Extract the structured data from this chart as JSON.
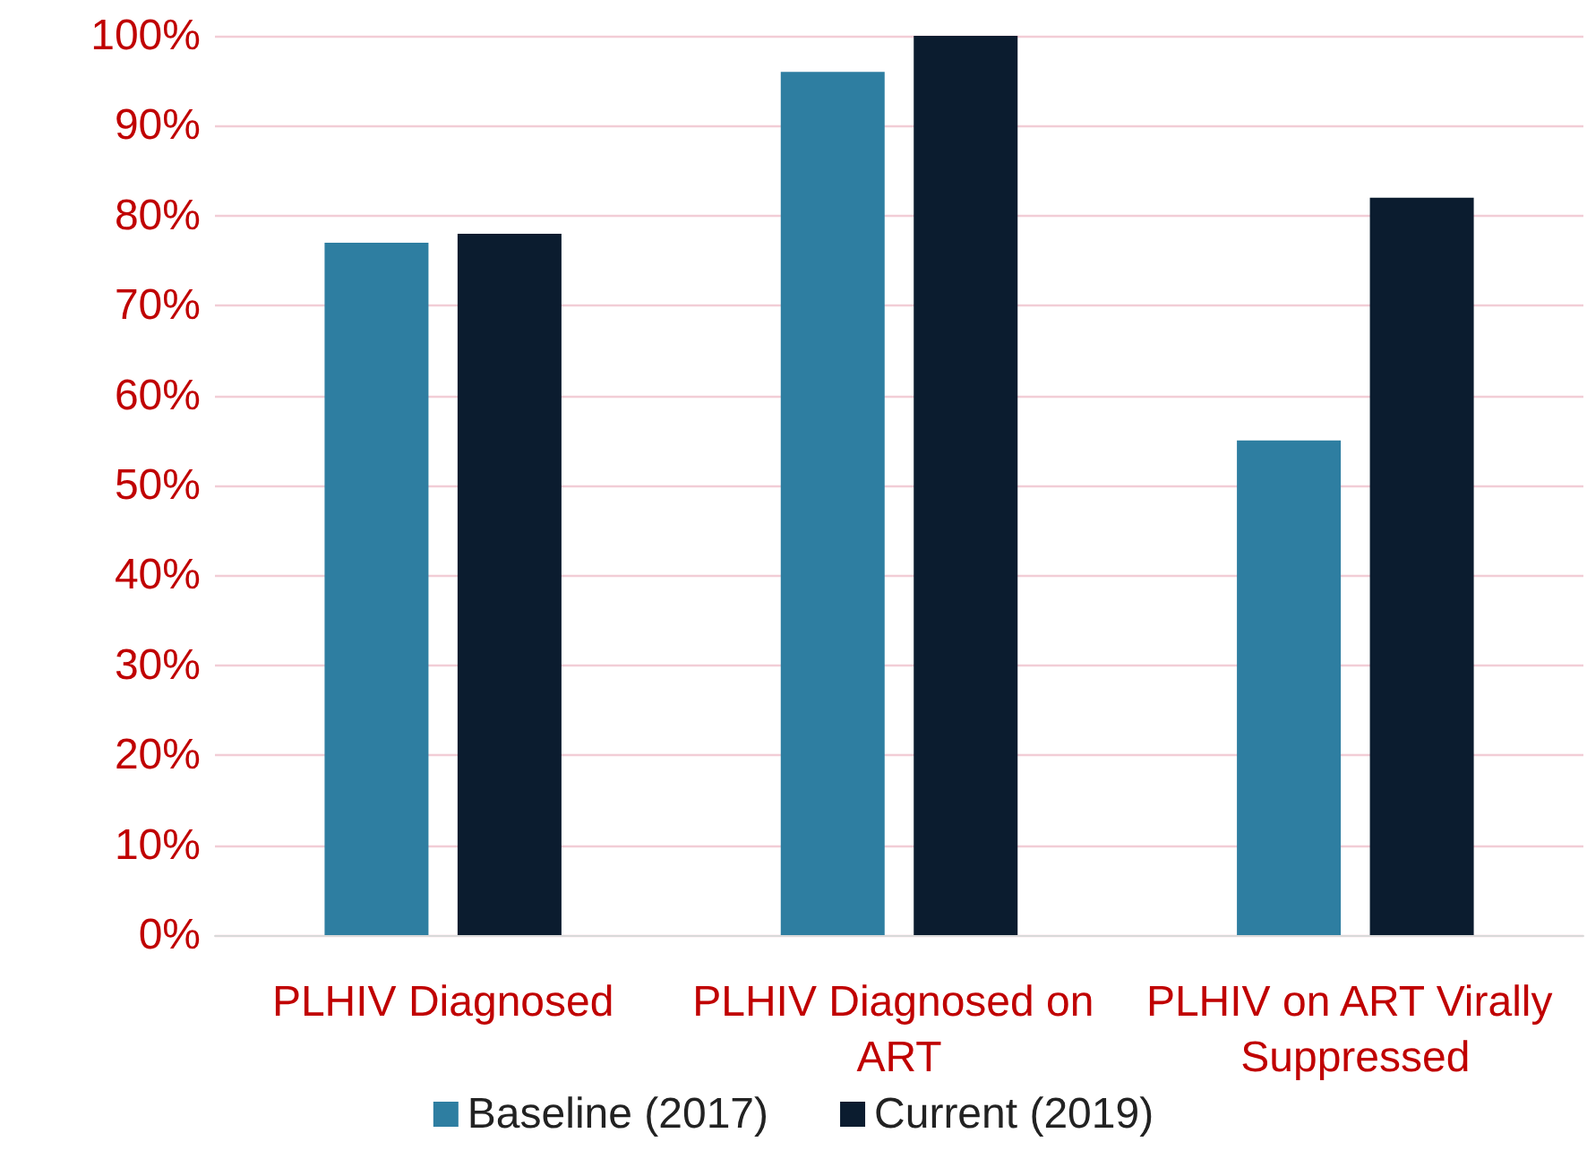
{
  "chart_data": {
    "type": "bar",
    "categories": [
      "PLHIV Diagnosed",
      "PLHIV Diagnosed on ART",
      "PLHIV on ART Virally Suppressed"
    ],
    "series": [
      {
        "name": "Baseline (2017)",
        "color": "#2e7ea1",
        "values": [
          77,
          96,
          55
        ]
      },
      {
        "name": "Current (2019)",
        "color": "#0b1c2f",
        "values": [
          78,
          100,
          82
        ]
      }
    ],
    "ylim": [
      0,
      100
    ],
    "yticks": [
      {
        "value": 0,
        "label": "0%"
      },
      {
        "value": 10,
        "label": "10%"
      },
      {
        "value": 20,
        "label": "20%"
      },
      {
        "value": 30,
        "label": "30%"
      },
      {
        "value": 40,
        "label": "40%"
      },
      {
        "value": 50,
        "label": "50%"
      },
      {
        "value": 60,
        "label": "60%"
      },
      {
        "value": 70,
        "label": "70%"
      },
      {
        "value": 80,
        "label": "80%"
      },
      {
        "value": 90,
        "label": "90%"
      },
      {
        "value": 100,
        "label": "100%"
      }
    ],
    "grid": "y",
    "legend": "bottom"
  }
}
